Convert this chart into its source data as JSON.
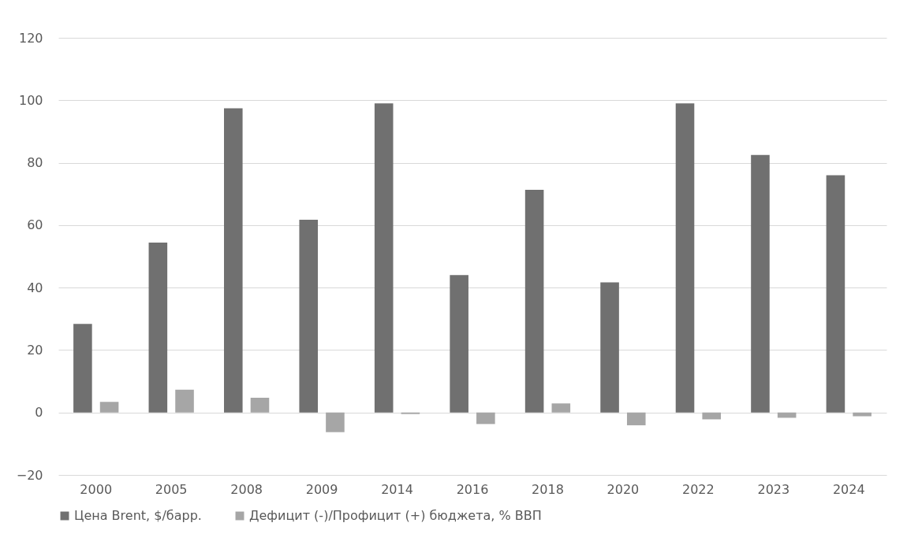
{
  "chart_data": {
    "type": "bar",
    "categories": [
      "2000",
      "2005",
      "2008",
      "2009",
      "2014",
      "2016",
      "2018",
      "2020",
      "2022",
      "2023",
      "2024"
    ],
    "series": [
      {
        "name": "Цена Brent, $/барр.",
        "color": "#707070",
        "values": [
          28.4,
          54.4,
          97.4,
          61.7,
          99.0,
          44.0,
          71.3,
          41.7,
          99.0,
          82.5,
          76.0
        ]
      },
      {
        "name": "Дефицит (-)/Профицит (+) бюджета, % ВВП",
        "color": "#a6a6a6",
        "values": [
          3.4,
          7.3,
          4.7,
          -6.3,
          -0.5,
          -3.7,
          2.9,
          -4.1,
          -2.2,
          -1.7,
          -1.2
        ]
      }
    ],
    "ylim": [
      -20,
      120
    ],
    "yticks": [
      -20,
      0,
      20,
      40,
      60,
      80,
      100,
      120
    ],
    "grid": "y",
    "legend": "bottom"
  }
}
